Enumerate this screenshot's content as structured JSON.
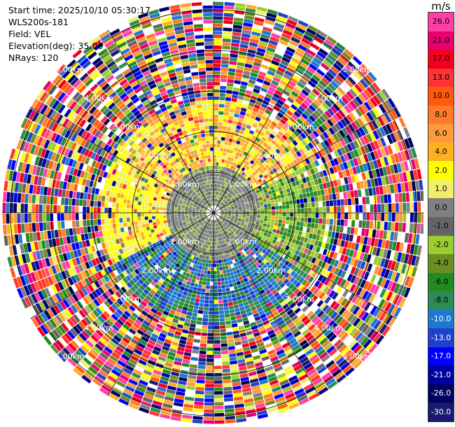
{
  "header": {
    "start_time": "Start time: 2025/10/10 05:30:17",
    "site": "WLS200s-181",
    "field": "Field: VEL",
    "elevation": "Elevation(deg): 35.00",
    "nrays": "NRays: 120"
  },
  "colorbar": {
    "unit": "m/s",
    "ticks": [
      "26.0",
      "21.0",
      "17.0",
      "13.0",
      "10.0",
      "8.0",
      "6.0",
      "4.0",
      "2.0",
      "1.0",
      "0.0",
      "-1.0",
      "-2.0",
      "-4.0",
      "-6.0",
      "-8.0",
      "-10.0",
      "-13.0",
      "-17.0",
      "-21.0",
      "-26.0",
      "-30.0"
    ],
    "colors": [
      "#ff3fa5",
      "#e8006e",
      "#f2001e",
      "#ff3333",
      "#ff5a10",
      "#ff7a2a",
      "#ff9a3c",
      "#ffb020",
      "#ffff00",
      "#f0f068",
      "#808080",
      "#646464",
      "#9acd32",
      "#6b8e23",
      "#228b22",
      "#2e8b57",
      "#1e78d2",
      "#2141cd",
      "#0000ff",
      "#0000a0",
      "#000060",
      "#191970"
    ]
  },
  "range_rings": {
    "labels": [
      "1.00km",
      "2.00km",
      "3.00km",
      "4.00km",
      "5.00km"
    ]
  },
  "scan": {
    "rays": 120,
    "gates": 58,
    "palette": [
      "#ff3fa5",
      "#e8006e",
      "#f2001e",
      "#ff3333",
      "#ff5a10",
      "#ff7a2a",
      "#ff9a3c",
      "#ffb020",
      "#ffff00",
      "#f0f068",
      "#808080",
      "#646464",
      "#9acd32",
      "#6b8e23",
      "#228b22",
      "#2e8b57",
      "#1e78d2",
      "#2141cd",
      "#0000ff",
      "#0000a0",
      "#000060",
      "#191970"
    ]
  }
}
